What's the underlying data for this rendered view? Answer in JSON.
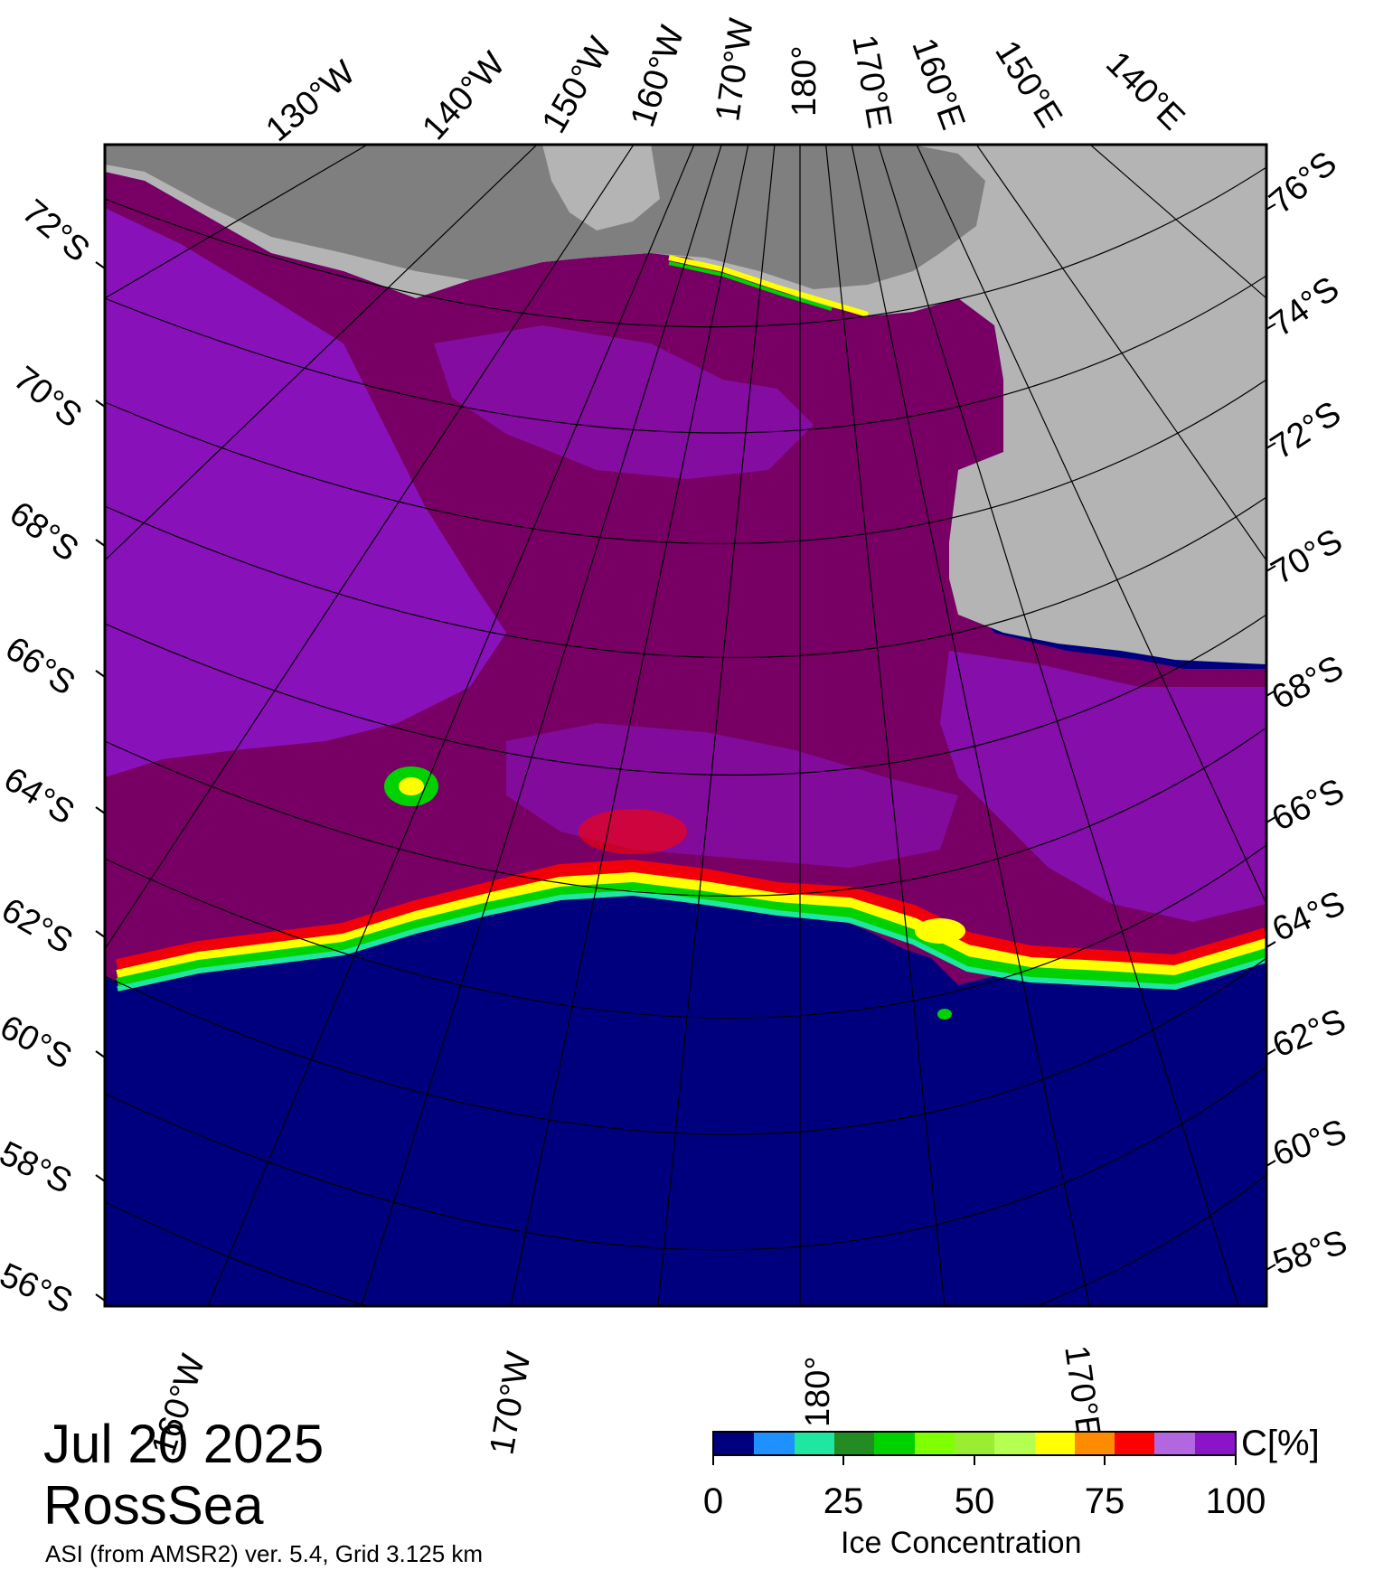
{
  "map": {
    "latitude_labels_left": [
      "72°S",
      "70°S",
      "68°S",
      "66°S",
      "64°S",
      "62°S",
      "60°S",
      "58°S",
      "56°S"
    ],
    "latitude_labels_right": [
      "76°S",
      "74°S",
      "72°S",
      "70°S",
      "68°S",
      "66°S",
      "64°S",
      "62°S",
      "60°S",
      "58°S"
    ],
    "longitude_labels_top": [
      "130°W",
      "140°W",
      "150°W",
      "160°W",
      "170°W",
      "180°",
      "170°E",
      "160°E",
      "150°E",
      "140°E"
    ],
    "longitude_labels_bottom": [
      "160°W",
      "170°W",
      "180°",
      "170°E"
    ],
    "colors": {
      "land": "#b4b4b4",
      "ice_shelf": "#7f7f7f",
      "open_water": "#00007f",
      "full_ice": "#780064",
      "high_ice": "#8c14c8"
    }
  },
  "caption": {
    "date": "Jul 20 2025",
    "region": "RossSea",
    "source": "ASI (from AMSR2) ver. 5.4,  Grid 3.125 km"
  },
  "colorbar": {
    "unit": "C[%]",
    "title": "Ice Concentration",
    "tick_labels": [
      "0",
      "25",
      "50",
      "75",
      "100"
    ],
    "colors": [
      "#00007f",
      "#1e90ff",
      "#1fe6a0",
      "#228b22",
      "#00d200",
      "#7fff00",
      "#9aee32",
      "#b4ff50",
      "#ffff00",
      "#ff8c00",
      "#ff0000",
      "#b266e0",
      "#8c14c8"
    ]
  }
}
